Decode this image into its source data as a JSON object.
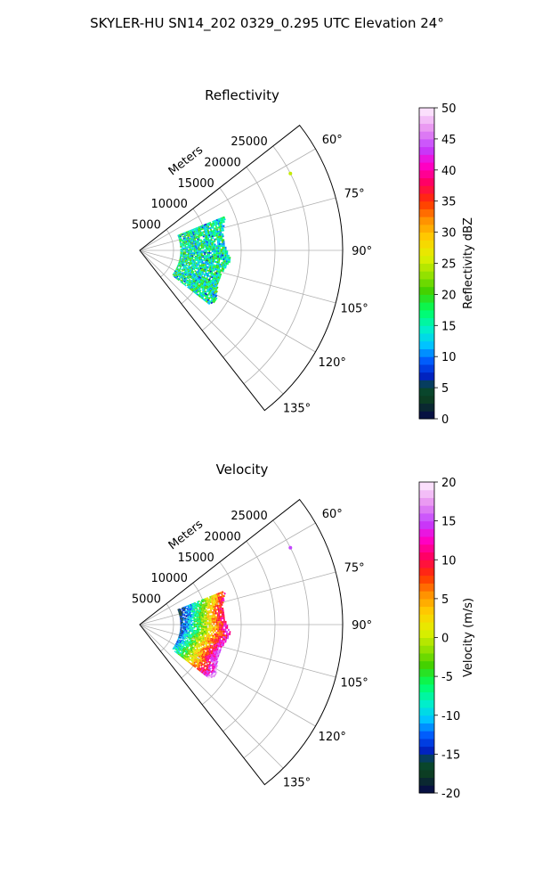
{
  "figure": {
    "title": "SKYLER-HU  SN14_202  0329_0.295 UTC Elevation 24°"
  },
  "chart_data": [
    {
      "type": "heatmap",
      "subtype": "polar-sector",
      "title": "Reflectivity",
      "radial_label": "Meters",
      "radial_ticks": [
        "5000",
        "10000",
        "15000",
        "20000",
        "25000"
      ],
      "radial_values": [
        5000,
        10000,
        15000,
        20000,
        25000
      ],
      "rmax": 30000,
      "angle_range": [
        52,
        142
      ],
      "angle_ticks": [
        "60°",
        "75°",
        "90°",
        "105°",
        "120°",
        "135°"
      ],
      "angle_values": [
        60,
        75,
        90,
        105,
        120,
        135
      ],
      "colorbar": {
        "label": "Reflectivity dBZ",
        "ticks": [
          "0",
          "5",
          "10",
          "15",
          "20",
          "25",
          "30",
          "35",
          "40",
          "45",
          "50"
        ],
        "range": [
          0,
          50
        ]
      },
      "echo": {
        "range_m": [
          6000,
          13500
        ],
        "azimuth_deg": [
          68,
          128
        ],
        "typical_value": 16,
        "value_spread": 6,
        "isolated_point": {
          "azimuth_deg": 63,
          "range_m": 25000,
          "value": 25
        }
      }
    },
    {
      "type": "heatmap",
      "subtype": "polar-sector",
      "title": "Velocity",
      "radial_label": "Meters",
      "radial_ticks": [
        "5000",
        "10000",
        "15000",
        "20000",
        "25000"
      ],
      "radial_values": [
        5000,
        10000,
        15000,
        20000,
        25000
      ],
      "rmax": 30000,
      "angle_range": [
        52,
        142
      ],
      "angle_ticks": [
        "60°",
        "75°",
        "90°",
        "105°",
        "120°",
        "135°"
      ],
      "angle_values": [
        60,
        75,
        90,
        105,
        120,
        135
      ],
      "colorbar": {
        "label": "Velocity (m/s)",
        "ticks": [
          "-20",
          "-15",
          "-10",
          "-5",
          "0",
          "5",
          "10",
          "15",
          "20"
        ],
        "range": [
          -20,
          20
        ]
      },
      "echo": {
        "range_m": [
          6000,
          13500
        ],
        "azimuth_deg": [
          68,
          128
        ],
        "inner_value": -14,
        "outer_value": 14,
        "isolated_point": {
          "azimuth_deg": 63,
          "range_m": 25000,
          "value": 15
        }
      }
    }
  ]
}
